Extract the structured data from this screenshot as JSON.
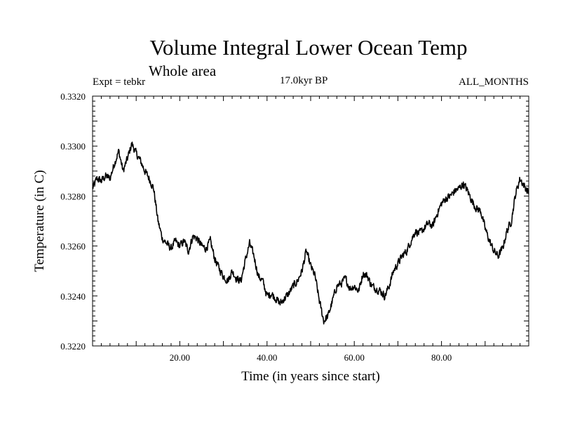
{
  "header": {
    "title": "Volume Integral Lower Ocean Temp",
    "subtitle": "Whole area",
    "experiment": "Expt = tebkr",
    "period": "17.0kyr BP",
    "months": "ALL_MONTHS"
  },
  "chart_data": {
    "type": "line",
    "xlabel": "Time (in years since start)",
    "ylabel": "Temperature (in C)",
    "xlim": [
      0,
      100
    ],
    "ylim": [
      0.322,
      0.332
    ],
    "x_ticks": [
      20,
      40,
      60,
      80
    ],
    "x_tick_labels": [
      "20.00",
      "40.00",
      "60.00",
      "80.00"
    ],
    "y_ticks": [
      0.322,
      0.324,
      0.326,
      0.328,
      0.33,
      0.332
    ],
    "y_tick_labels": [
      "0.3220",
      "0.3240",
      "0.3260",
      "0.3280",
      "0.3300",
      "0.3320"
    ],
    "series": [
      {
        "name": "Volume integral lower ocean temperature",
        "color": "#000000",
        "x": [
          0,
          1,
          2,
          3,
          4,
          5,
          6,
          7,
          8,
          9,
          10,
          11,
          12,
          13,
          14,
          15,
          16,
          17,
          18,
          19,
          20,
          21,
          22,
          23,
          24,
          25,
          26,
          27,
          28,
          29,
          30,
          31,
          32,
          33,
          34,
          35,
          36,
          37,
          38,
          39,
          40,
          41,
          42,
          43,
          44,
          45,
          46,
          47,
          48,
          49,
          50,
          51,
          52,
          53,
          54,
          55,
          56,
          57,
          58,
          59,
          60,
          61,
          62,
          63,
          64,
          65,
          66,
          67,
          68,
          69,
          70,
          71,
          72,
          73,
          74,
          75,
          76,
          77,
          78,
          79,
          80,
          81,
          82,
          83,
          84,
          85,
          86,
          87,
          88,
          89,
          90,
          91,
          92,
          93,
          94,
          95,
          96,
          97,
          98,
          99,
          100
        ],
        "y": [
          0.3283,
          0.3287,
          0.3286,
          0.3288,
          0.3287,
          0.3293,
          0.3298,
          0.329,
          0.3295,
          0.3301,
          0.3297,
          0.3294,
          0.329,
          0.3287,
          0.3283,
          0.327,
          0.3263,
          0.3261,
          0.3259,
          0.3262,
          0.326,
          0.3262,
          0.3258,
          0.3264,
          0.3263,
          0.326,
          0.3259,
          0.3262,
          0.3255,
          0.3251,
          0.3248,
          0.3246,
          0.325,
          0.3247,
          0.3246,
          0.3254,
          0.3261,
          0.3256,
          0.3248,
          0.3246,
          0.324,
          0.3241,
          0.3239,
          0.3237,
          0.3239,
          0.3241,
          0.3244,
          0.3246,
          0.325,
          0.3258,
          0.3252,
          0.3248,
          0.3238,
          0.323,
          0.3232,
          0.3238,
          0.3244,
          0.3245,
          0.3247,
          0.3243,
          0.3244,
          0.3242,
          0.3249,
          0.3248,
          0.3244,
          0.3243,
          0.3242,
          0.324,
          0.3244,
          0.325,
          0.3253,
          0.3256,
          0.3258,
          0.3262,
          0.3266,
          0.3265,
          0.3267,
          0.3269,
          0.3268,
          0.3273,
          0.3277,
          0.3279,
          0.328,
          0.3282,
          0.3283,
          0.3285,
          0.3282,
          0.3278,
          0.3275,
          0.3274,
          0.3267,
          0.3262,
          0.3258,
          0.3256,
          0.3259,
          0.3266,
          0.327,
          0.3281,
          0.3287,
          0.3284,
          0.3281
        ]
      }
    ]
  }
}
